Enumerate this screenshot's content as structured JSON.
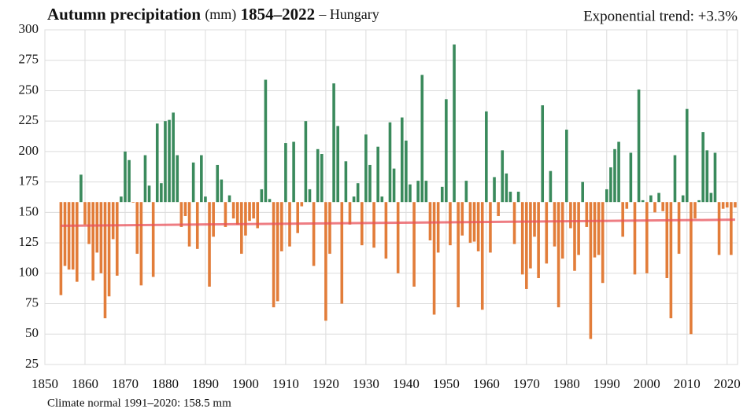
{
  "chart_data": {
    "type": "bar",
    "title": {
      "bold_1": "Autumn precipitation",
      "unit": "(mm)",
      "bold_2": "1854–2022",
      "region": "– Hungary"
    },
    "annotation": "Exponential trend: +3.3%",
    "footnote": "Climate normal 1991–2020: 158.5 mm",
    "baseline": 158.5,
    "positive_color": "#3a8a5c",
    "negative_color": "#e27d3a",
    "x": [
      1854,
      1855,
      1856,
      1857,
      1858,
      1859,
      1860,
      1861,
      1862,
      1863,
      1864,
      1865,
      1866,
      1867,
      1868,
      1869,
      1870,
      1871,
      1872,
      1873,
      1874,
      1875,
      1876,
      1877,
      1878,
      1879,
      1880,
      1881,
      1882,
      1883,
      1884,
      1885,
      1886,
      1887,
      1888,
      1889,
      1890,
      1891,
      1892,
      1893,
      1894,
      1895,
      1896,
      1897,
      1898,
      1899,
      1900,
      1901,
      1902,
      1903,
      1904,
      1905,
      1906,
      1907,
      1908,
      1909,
      1910,
      1911,
      1912,
      1913,
      1914,
      1915,
      1916,
      1917,
      1918,
      1919,
      1920,
      1921,
      1922,
      1923,
      1924,
      1925,
      1926,
      1927,
      1928,
      1929,
      1930,
      1931,
      1932,
      1933,
      1934,
      1935,
      1936,
      1937,
      1938,
      1939,
      1940,
      1941,
      1942,
      1943,
      1944,
      1945,
      1946,
      1947,
      1948,
      1949,
      1950,
      1951,
      1952,
      1953,
      1954,
      1955,
      1956,
      1957,
      1958,
      1959,
      1960,
      1961,
      1962,
      1963,
      1964,
      1965,
      1966,
      1967,
      1968,
      1969,
      1970,
      1971,
      1972,
      1973,
      1974,
      1975,
      1976,
      1977,
      1978,
      1979,
      1980,
      1981,
      1982,
      1983,
      1984,
      1985,
      1986,
      1987,
      1988,
      1989,
      1990,
      1991,
      1992,
      1993,
      1994,
      1995,
      1996,
      1997,
      1998,
      1999,
      2000,
      2001,
      2002,
      2003,
      2004,
      2005,
      2006,
      2007,
      2008,
      2009,
      2010,
      2011,
      2012,
      2013,
      2014,
      2015,
      2016,
      2017,
      2018,
      2019,
      2020,
      2021,
      2022
    ],
    "values": [
      82,
      106,
      103,
      103,
      93,
      181,
      140,
      124,
      94,
      117,
      100,
      63,
      81,
      128,
      98,
      163,
      200,
      193,
      158,
      116,
      90,
      197,
      172,
      97,
      223,
      174,
      225,
      226,
      232,
      197,
      138,
      147,
      122,
      191,
      120,
      197,
      163,
      89,
      130,
      189,
      177,
      138,
      164,
      145,
      140,
      116,
      131,
      143,
      145,
      137,
      169,
      259,
      161,
      72,
      77,
      118,
      207,
      122,
      208,
      133,
      155,
      225,
      169,
      106,
      202,
      198,
      61,
      116,
      256,
      221,
      75,
      192,
      140,
      163,
      174,
      123,
      214,
      189,
      121,
      204,
      163,
      112,
      224,
      186,
      100,
      228,
      209,
      173,
      89,
      176,
      263,
      176,
      127,
      66,
      117,
      171,
      243,
      123,
      288,
      72,
      131,
      176,
      125,
      126,
      118,
      70,
      233,
      117,
      179,
      147,
      201,
      182,
      167,
      124,
      167,
      99,
      87,
      104,
      130,
      96,
      238,
      108,
      184,
      122,
      72,
      112,
      218,
      137,
      102,
      115,
      175,
      138,
      46,
      113,
      115,
      92,
      169,
      187,
      202,
      208,
      130,
      153,
      199,
      99,
      251,
      160,
      100,
      164,
      150,
      166,
      151,
      96,
      63,
      197,
      116,
      164,
      235,
      50,
      145,
      160,
      216,
      201,
      166,
      199,
      115,
      153,
      154,
      115,
      154
    ],
    "trend": {
      "x": [
        1854,
        2022
      ],
      "values": [
        139,
        144
      ],
      "color": "#e8525a"
    },
    "xlim": [
      1850,
      2022.6
    ],
    "ylim": [
      25,
      300
    ],
    "xticks": [
      1850,
      1860,
      1870,
      1880,
      1890,
      1900,
      1910,
      1920,
      1930,
      1940,
      1950,
      1960,
      1970,
      1980,
      1990,
      2000,
      2010,
      2020
    ],
    "yticks": [
      25,
      50,
      75,
      100,
      125,
      150,
      175,
      200,
      225,
      250,
      275,
      300
    ],
    "grid": true
  }
}
